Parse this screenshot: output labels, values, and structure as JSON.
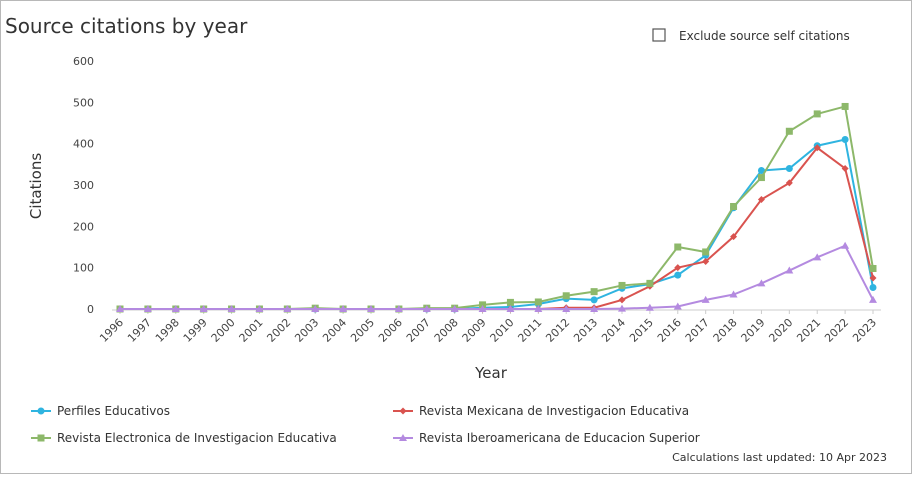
{
  "chart_data": {
    "type": "line",
    "title": "Source citations by year",
    "checkbox_label": "Exclude source self citations",
    "x_label": "Year",
    "y_label": "Citations",
    "footer": "Calculations last updated: 10 Apr 2023",
    "categories": [
      "1996",
      "1997",
      "1998",
      "1999",
      "2000",
      "2001",
      "2002",
      "2003",
      "2004",
      "2005",
      "2006",
      "2007",
      "2008",
      "2009",
      "2010",
      "2011",
      "2012",
      "2013",
      "2014",
      "2015",
      "2016",
      "2017",
      "2018",
      "2019",
      "2020",
      "2021",
      "2022",
      "2023"
    ],
    "ylim": [
      0,
      600
    ],
    "yticks": [
      0,
      100,
      200,
      300,
      400,
      500,
      600
    ],
    "grid": false,
    "legend": "bottom",
    "series": [
      {
        "name": "Perfiles Educativos",
        "color": "#2fb4e0",
        "marker": "circle",
        "values": [
          0,
          0,
          0,
          0,
          0,
          0,
          0,
          0,
          0,
          0,
          0,
          0,
          0,
          3,
          5,
          12,
          25,
          22,
          50,
          60,
          82,
          130,
          245,
          335,
          340,
          395,
          410,
          52
        ]
      },
      {
        "name": "Revista Mexicana de Investigacion Educativa",
        "color": "#d9534f",
        "marker": "diamond",
        "values": [
          0,
          0,
          0,
          0,
          0,
          0,
          0,
          0,
          0,
          0,
          0,
          0,
          0,
          0,
          0,
          0,
          3,
          3,
          22,
          55,
          100,
          115,
          175,
          265,
          305,
          390,
          340,
          75
        ]
      },
      {
        "name": "Revista Electronica de Investigacion Educativa",
        "color": "#8db86a",
        "marker": "square",
        "values": [
          0,
          0,
          0,
          0,
          0,
          0,
          0,
          2,
          0,
          0,
          0,
          2,
          2,
          10,
          16,
          17,
          32,
          42,
          57,
          62,
          150,
          138,
          248,
          318,
          430,
          472,
          490,
          98
        ]
      },
      {
        "name": "Revista Iberoamericana de Educacion Superior",
        "color": "#b48ae0",
        "marker": "triangle",
        "values": [
          0,
          0,
          0,
          0,
          0,
          0,
          0,
          0,
          0,
          0,
          0,
          0,
          0,
          0,
          0,
          0,
          0,
          0,
          1,
          3,
          6,
          22,
          35,
          62,
          93,
          125,
          153,
          22
        ]
      }
    ]
  }
}
